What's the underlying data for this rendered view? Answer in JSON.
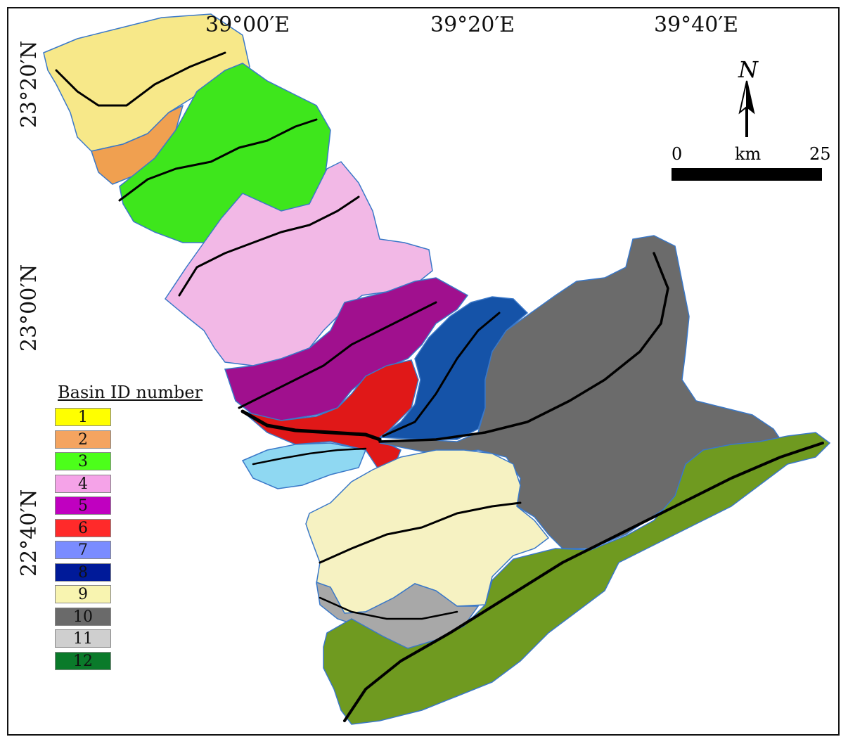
{
  "map": {
    "lon_labels": [
      "39°00′E",
      "39°20′E",
      "39°40′E"
    ],
    "lat_labels": [
      "23°20′N",
      "23°00′N",
      "22°40′N"
    ],
    "north_label": "N",
    "scale": {
      "start": "0",
      "unit": "km",
      "end": "25"
    },
    "legend": {
      "title": "Basin ID number",
      "items": [
        {
          "id": "1",
          "color": "#ffff00"
        },
        {
          "id": "2",
          "color": "#f4a460"
        },
        {
          "id": "3",
          "color": "#4cff1a"
        },
        {
          "id": "4",
          "color": "#f5a3e8"
        },
        {
          "id": "5",
          "color": "#c000c0"
        },
        {
          "id": "6",
          "color": "#ff2a2a"
        },
        {
          "id": "7",
          "color": "#7a8cff"
        },
        {
          "id": "8",
          "color": "#001a99"
        },
        {
          "id": "9",
          "color": "#f8f4b0"
        },
        {
          "id": "10",
          "color": "#6a6a6a"
        },
        {
          "id": "11",
          "color": "#cfcfcf"
        },
        {
          "id": "12",
          "color": "#0a7a2a"
        }
      ]
    },
    "basin_fill_colors": {
      "1": "#f7e889",
      "2": "#f0a050",
      "3": "#3ee61c",
      "4": "#f2b8e6",
      "5": "#a0108e",
      "6": "#e01818",
      "7": "#8fd8f2",
      "8": "#1553a8",
      "9": "#f6f2c2",
      "10": "#6b6b6b",
      "11": "#a8a8a8",
      "12": "#6f9a20"
    }
  }
}
